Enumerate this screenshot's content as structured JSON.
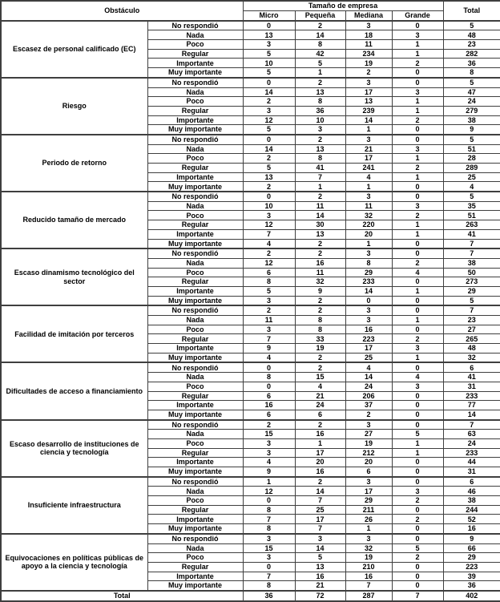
{
  "table": {
    "header": {
      "obstacle": "Obstáculo",
      "size_group": "Tamaño de empresa",
      "size_columns": [
        "Micro",
        "Pequeña",
        "Mediana",
        "Grande"
      ],
      "total": "Total"
    },
    "rating_scale_note": [
      "No respondió",
      "Nada",
      "Poco",
      "Regular",
      "Importante",
      "Muy importante"
    ],
    "groups": [
      {
        "obstacle": "Escasez de personal calificado (EC)",
        "rows": [
          {
            "label": "No respondió",
            "values": [
              0,
              2,
              3,
              0,
              5
            ]
          },
          {
            "label": "Nada",
            "values": [
              13,
              14,
              18,
              3,
              48
            ]
          },
          {
            "label": "Poco",
            "values": [
              3,
              8,
              11,
              1,
              23
            ]
          },
          {
            "label": "Regular",
            "values": [
              5,
              42,
              234,
              1,
              282
            ]
          },
          {
            "label": "Importante",
            "values": [
              10,
              5,
              19,
              2,
              36
            ]
          },
          {
            "label": "Muy importante",
            "values": [
              5,
              1,
              2,
              0,
              8
            ]
          }
        ]
      },
      {
        "obstacle": "Riesgo",
        "rows": [
          {
            "label": "No respondió",
            "values": [
              0,
              2,
              3,
              0,
              5
            ]
          },
          {
            "label": "Nada",
            "values": [
              14,
              13,
              17,
              3,
              47
            ]
          },
          {
            "label": "Poco",
            "values": [
              2,
              8,
              13,
              1,
              24
            ]
          },
          {
            "label": "Regular",
            "values": [
              3,
              36,
              239,
              1,
              279
            ]
          },
          {
            "label": "Importante",
            "values": [
              12,
              10,
              14,
              2,
              38
            ]
          },
          {
            "label": "Muy importante",
            "values": [
              5,
              3,
              1,
              0,
              9
            ]
          }
        ]
      },
      {
        "obstacle": "Periodo de retorno",
        "rows": [
          {
            "label": "No respondió",
            "values": [
              0,
              2,
              3,
              0,
              5
            ]
          },
          {
            "label": "Nada",
            "values": [
              14,
              13,
              21,
              3,
              51
            ]
          },
          {
            "label": "Poco",
            "values": [
              2,
              8,
              17,
              1,
              28
            ]
          },
          {
            "label": "Regular",
            "values": [
              5,
              41,
              241,
              2,
              289
            ]
          },
          {
            "label": "Importante",
            "values": [
              13,
              7,
              4,
              1,
              25
            ]
          },
          {
            "label": "Muy importante",
            "values": [
              2,
              1,
              1,
              0,
              4
            ]
          }
        ]
      },
      {
        "obstacle": "Reducido tamaño de mercado",
        "rows": [
          {
            "label": "No respondió",
            "values": [
              0,
              2,
              3,
              0,
              5
            ]
          },
          {
            "label": "Nada",
            "values": [
              10,
              11,
              11,
              3,
              35
            ]
          },
          {
            "label": "Poco",
            "values": [
              3,
              14,
              32,
              2,
              51
            ]
          },
          {
            "label": "Regular",
            "values": [
              12,
              30,
              220,
              1,
              263
            ]
          },
          {
            "label": "Importante",
            "values": [
              7,
              13,
              20,
              1,
              41
            ]
          },
          {
            "label": "Muy importante",
            "values": [
              4,
              2,
              1,
              0,
              7
            ]
          }
        ]
      },
      {
        "obstacle": "Escaso dinamismo tecnológico del sector",
        "rows": [
          {
            "label": "No respondió",
            "values": [
              2,
              2,
              3,
              0,
              7
            ]
          },
          {
            "label": "Nada",
            "values": [
              12,
              16,
              8,
              2,
              38
            ]
          },
          {
            "label": "Poco",
            "values": [
              6,
              11,
              29,
              4,
              50
            ]
          },
          {
            "label": "Regular",
            "values": [
              8,
              32,
              233,
              0,
              273
            ]
          },
          {
            "label": "Importante",
            "values": [
              5,
              9,
              14,
              1,
              29
            ]
          },
          {
            "label": "Muy importante",
            "values": [
              3,
              2,
              0,
              0,
              5
            ]
          }
        ]
      },
      {
        "obstacle": "Facilidad de imitación por terceros",
        "rows": [
          {
            "label": "No respondió",
            "values": [
              2,
              2,
              3,
              0,
              7
            ]
          },
          {
            "label": "Nada",
            "values": [
              11,
              8,
              3,
              1,
              23
            ]
          },
          {
            "label": "Poco",
            "values": [
              3,
              8,
              16,
              0,
              27
            ]
          },
          {
            "label": "Regular",
            "values": [
              7,
              33,
              223,
              2,
              265
            ]
          },
          {
            "label": "Importante",
            "values": [
              9,
              19,
              17,
              3,
              48
            ]
          },
          {
            "label": "Muy importante",
            "values": [
              4,
              2,
              25,
              1,
              32
            ]
          }
        ]
      },
      {
        "obstacle": "Dificultades de acceso a financiamiento",
        "rows": [
          {
            "label": "No respondió",
            "values": [
              0,
              2,
              4,
              0,
              6
            ]
          },
          {
            "label": "Nada",
            "values": [
              8,
              15,
              14,
              4,
              41
            ]
          },
          {
            "label": "Poco",
            "values": [
              0,
              4,
              24,
              3,
              31
            ]
          },
          {
            "label": "Regular",
            "values": [
              6,
              21,
              206,
              0,
              233
            ]
          },
          {
            "label": "Importante",
            "values": [
              16,
              24,
              37,
              0,
              77
            ]
          },
          {
            "label": "Muy importante",
            "values": [
              6,
              6,
              2,
              0,
              14
            ]
          }
        ]
      },
      {
        "obstacle": "Escaso desarrollo de instituciones de ciencia y tecnología",
        "rows": [
          {
            "label": "No respondió",
            "values": [
              2,
              2,
              3,
              0,
              7
            ]
          },
          {
            "label": "Nada",
            "values": [
              15,
              16,
              27,
              5,
              63
            ]
          },
          {
            "label": "Poco",
            "values": [
              3,
              1,
              19,
              1,
              24
            ]
          },
          {
            "label": "Regular",
            "values": [
              3,
              17,
              212,
              1,
              233
            ]
          },
          {
            "label": "Importante",
            "values": [
              4,
              20,
              20,
              0,
              44
            ]
          },
          {
            "label": "Muy importante",
            "values": [
              9,
              16,
              6,
              0,
              31
            ]
          }
        ]
      },
      {
        "obstacle": "Insuficiente infraestructura",
        "rows": [
          {
            "label": "No respondió",
            "values": [
              1,
              2,
              3,
              0,
              6
            ]
          },
          {
            "label": "Nada",
            "values": [
              12,
              14,
              17,
              3,
              46
            ]
          },
          {
            "label": "Poco",
            "values": [
              0,
              7,
              29,
              2,
              38
            ]
          },
          {
            "label": "Regular",
            "values": [
              8,
              25,
              211,
              0,
              244
            ]
          },
          {
            "label": "Importante",
            "values": [
              7,
              17,
              26,
              2,
              52
            ]
          },
          {
            "label": "Muy importante",
            "values": [
              8,
              7,
              1,
              0,
              16
            ]
          }
        ]
      },
      {
        "obstacle": "Equivocaciones en políticas públicas de apoyo a la ciencia y tecnología",
        "rows": [
          {
            "label": "No respondió",
            "values": [
              3,
              3,
              3,
              0,
              9
            ]
          },
          {
            "label": "Nada",
            "values": [
              15,
              14,
              32,
              5,
              66
            ]
          },
          {
            "label": "Poco",
            "values": [
              3,
              5,
              19,
              2,
              29
            ]
          },
          {
            "label": "Regular",
            "values": [
              0,
              13,
              210,
              0,
              223
            ]
          },
          {
            "label": "Importante",
            "values": [
              7,
              16,
              16,
              0,
              39
            ]
          },
          {
            "label": "Muy importante",
            "values": [
              8,
              21,
              7,
              0,
              36
            ]
          }
        ]
      }
    ],
    "footer": {
      "label": "Total",
      "values": [
        36,
        72,
        287,
        7,
        402
      ]
    }
  }
}
